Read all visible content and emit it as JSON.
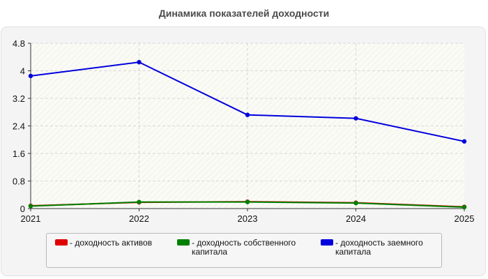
{
  "chart_data": {
    "type": "line",
    "title": "Динамика показателей доходности",
    "x": [
      "2021",
      "2022",
      "2023",
      "2024",
      "2025"
    ],
    "ylim": [
      0,
      4.8
    ],
    "yticks": [
      "0",
      "0.8",
      "1.6",
      "2.4",
      "3.2",
      "4",
      "4.8"
    ],
    "grid": true,
    "legend_position": "bottom",
    "series": [
      {
        "name": "- доходность активов",
        "legend_lines": [
          "- доходность активов"
        ],
        "color": "#e00000",
        "values": [
          0.08,
          0.18,
          0.2,
          0.17,
          0.05
        ]
      },
      {
        "name": "- доходность собственного капитала",
        "legend_lines": [
          "- доходность собственного",
          "капитала"
        ],
        "color": "#008000",
        "values": [
          0.07,
          0.19,
          0.19,
          0.16,
          0.04
        ]
      },
      {
        "name": "- доходность заемного капитала",
        "legend_lines": [
          "- доходность заемного",
          "капитала"
        ],
        "color": "#0000dd",
        "values": [
          3.85,
          4.25,
          2.72,
          2.62,
          1.95
        ]
      }
    ]
  }
}
